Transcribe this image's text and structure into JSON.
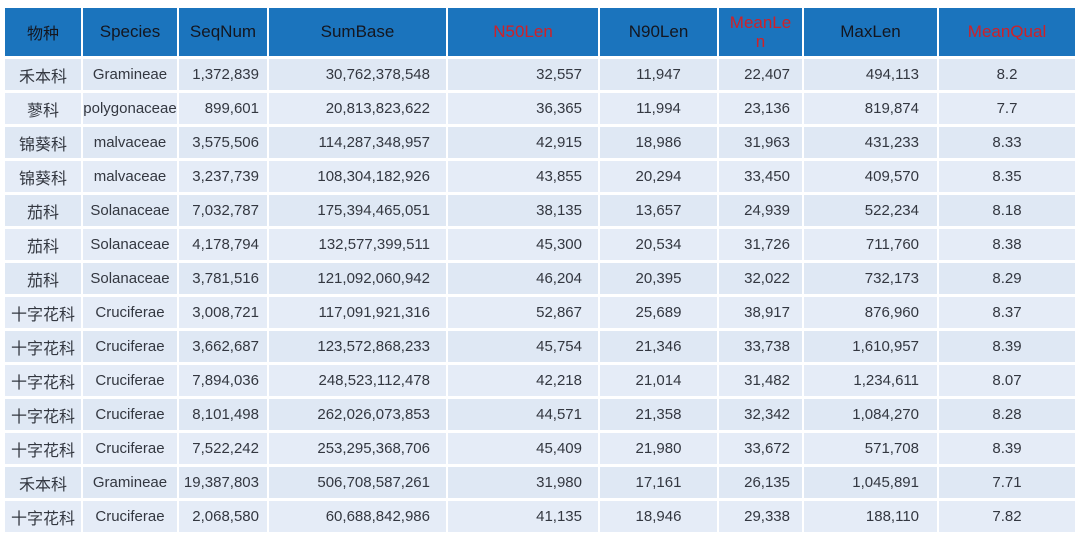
{
  "colors": {
    "header_bg": "#1b74bd",
    "header_text_dark": "#14161f",
    "header_text_red": "#cf2128",
    "row_bg_odd": "#dfe8f4",
    "row_bg_even": "#e5ecf7",
    "grid_line": "#ffffff",
    "cell_text": "#333740"
  },
  "chart_data": {
    "type": "table",
    "title": "",
    "legend": [],
    "columns": [
      {
        "key": "family_cn",
        "label": "物种",
        "red": false
      },
      {
        "key": "species",
        "label": "Species",
        "red": false
      },
      {
        "key": "seqnum",
        "label": "SeqNum",
        "red": false
      },
      {
        "key": "sumbase",
        "label": "SumBase",
        "red": false
      },
      {
        "key": "n50len",
        "label": "N50Len",
        "red": true
      },
      {
        "key": "n90len",
        "label": "N90Len",
        "red": false
      },
      {
        "key": "meanlen",
        "label": "MeanLen",
        "red": true
      },
      {
        "key": "maxlen",
        "label": "MaxLen",
        "red": false
      },
      {
        "key": "meanqual",
        "label": "MeanQual",
        "red": true
      }
    ],
    "rows": [
      [
        "禾本科",
        "Gramineae",
        "1,372,839",
        "30,762,378,548",
        "32,557",
        "11,947",
        "22,407",
        "494,113",
        "8.2"
      ],
      [
        "蓼科",
        "polygonaceae",
        "899,601",
        "20,813,823,622",
        "36,365",
        "11,994",
        "23,136",
        "819,874",
        "7.7"
      ],
      [
        "锦葵科",
        "malvaceae",
        "3,575,506",
        "114,287,348,957",
        "42,915",
        "18,986",
        "31,963",
        "431,233",
        "8.33"
      ],
      [
        "锦葵科",
        "malvaceae",
        "3,237,739",
        "108,304,182,926",
        "43,855",
        "20,294",
        "33,450",
        "409,570",
        "8.35"
      ],
      [
        "茄科",
        "Solanaceae",
        "7,032,787",
        "175,394,465,051",
        "38,135",
        "13,657",
        "24,939",
        "522,234",
        "8.18"
      ],
      [
        "茄科",
        "Solanaceae",
        "4,178,794",
        "132,577,399,511",
        "45,300",
        "20,534",
        "31,726",
        "711,760",
        "8.38"
      ],
      [
        "茄科",
        "Solanaceae",
        "3,781,516",
        "121,092,060,942",
        "46,204",
        "20,395",
        "32,022",
        "732,173",
        "8.29"
      ],
      [
        "十字花科",
        "Cruciferae",
        "3,008,721",
        "117,091,921,316",
        "52,867",
        "25,689",
        "38,917",
        "876,960",
        "8.37"
      ],
      [
        "十字花科",
        "Cruciferae",
        "3,662,687",
        "123,572,868,233",
        "45,754",
        "21,346",
        "33,738",
        "1,610,957",
        "8.39"
      ],
      [
        "十字花科",
        "Cruciferae",
        "7,894,036",
        "248,523,112,478",
        "42,218",
        "21,014",
        "31,482",
        "1,234,611",
        "8.07"
      ],
      [
        "十字花科",
        "Cruciferae",
        "8,101,498",
        "262,026,073,853",
        "44,571",
        "21,358",
        "32,342",
        "1,084,270",
        "8.28"
      ],
      [
        "十字花科",
        "Cruciferae",
        "7,522,242",
        "253,295,368,706",
        "45,409",
        "21,980",
        "33,672",
        "571,708",
        "8.39"
      ],
      [
        "禾本科",
        "Gramineae",
        "19,387,803",
        "506,708,587,261",
        "31,980",
        "17,161",
        "26,135",
        "1,045,891",
        "7.71"
      ],
      [
        "十字花科",
        "Cruciferae",
        "2,068,580",
        "60,688,842,986",
        "41,135",
        "18,946",
        "29,338",
        "188,110",
        "7.82"
      ]
    ]
  }
}
